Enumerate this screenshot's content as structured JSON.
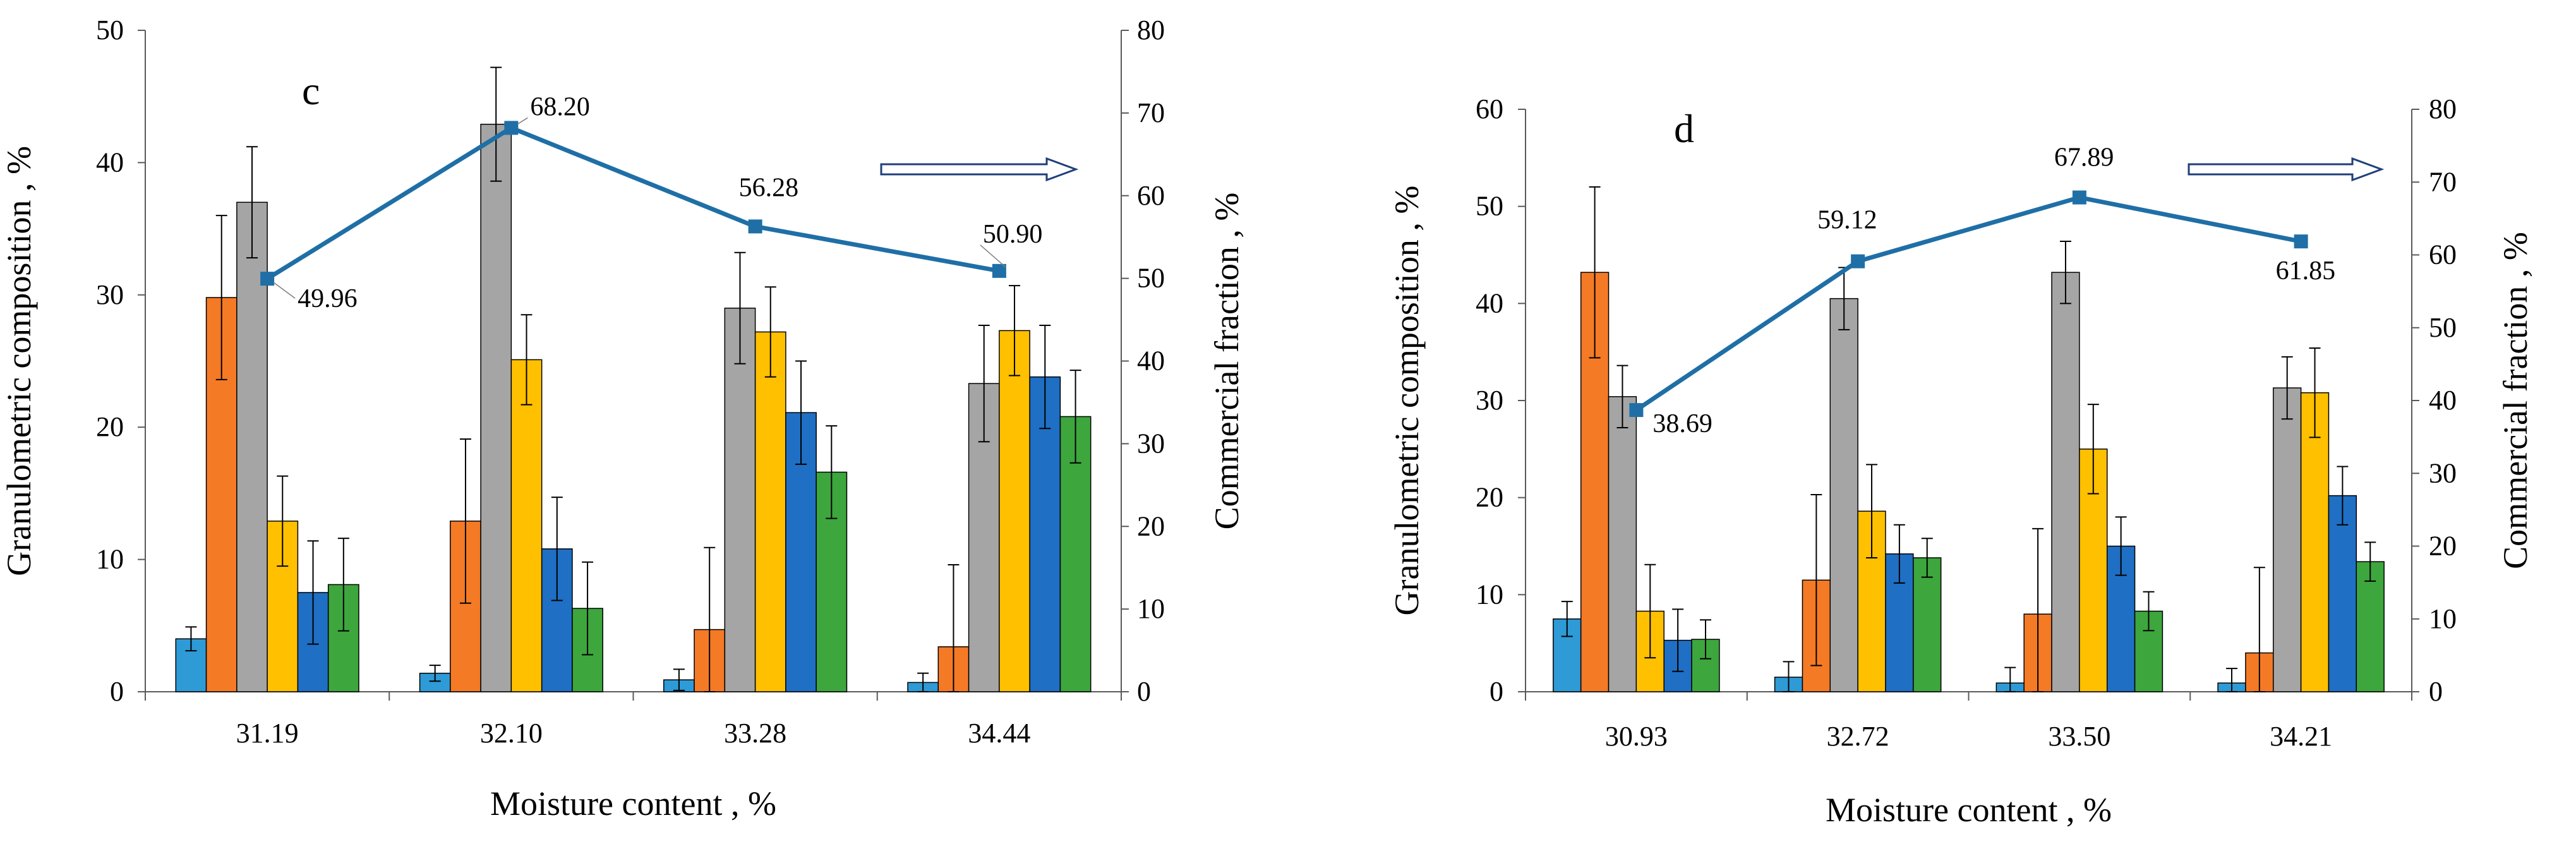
{
  "chart_data": [
    {
      "id": "c",
      "type": "bar",
      "panel_label": "c",
      "xlabel": "Moisture content , %",
      "ylabel": "Granulometric composition , %",
      "y2label": "Commercial fraction , %",
      "categories": [
        "31.19",
        "32.10",
        "33.28",
        "34.44"
      ],
      "ylim": [
        0,
        50
      ],
      "yticks": [
        "0",
        "10",
        "20",
        "30",
        "40",
        "50"
      ],
      "y2lim": [
        0,
        80
      ],
      "y2ticks": [
        "0",
        "10",
        "20",
        "30",
        "40",
        "50",
        "60",
        "70",
        "80"
      ],
      "bar_colors": [
        "#2e9ad6",
        "#f47a26",
        "#a5a5a5",
        "#ffc000",
        "#1f6fc4",
        "#3da63d"
      ],
      "series": [
        {
          "values": [
            4.0,
            1.4,
            0.9,
            0.7
          ],
          "errors": [
            0.9,
            0.6,
            0.8,
            0.7
          ]
        },
        {
          "values": [
            29.8,
            12.9,
            4.7,
            3.4
          ],
          "errors": [
            6.2,
            6.2,
            6.2,
            6.2
          ]
        },
        {
          "values": [
            37.0,
            42.9,
            29.0,
            23.3
          ],
          "errors": [
            4.2,
            4.3,
            4.2,
            4.4
          ]
        },
        {
          "values": [
            12.9,
            25.1,
            27.2,
            27.3
          ],
          "errors": [
            3.4,
            3.4,
            3.4,
            3.4
          ]
        },
        {
          "values": [
            7.5,
            10.8,
            21.1,
            23.8
          ],
          "errors": [
            3.9,
            3.9,
            3.9,
            3.9
          ]
        },
        {
          "values": [
            8.1,
            6.3,
            16.6,
            20.8
          ],
          "errors": [
            3.5,
            3.5,
            3.5,
            3.5
          ]
        }
      ],
      "line": {
        "color": "#1f6fa6",
        "values": [
          49.96,
          68.2,
          56.28,
          50.9
        ],
        "labels": [
          "49.96",
          "68.20",
          "56.28",
          "50.90"
        ]
      }
    },
    {
      "id": "d",
      "type": "bar",
      "panel_label": "d",
      "xlabel": "Moisture content , %",
      "ylabel": "Granulometric composition , %",
      "y2label": "Commercial fraction , %",
      "categories": [
        "30.93",
        "32.72",
        "33.50",
        "34.21"
      ],
      "ylim": [
        0,
        60
      ],
      "yticks": [
        "0",
        "10",
        "20",
        "30",
        "40",
        "50",
        "60"
      ],
      "y2lim": [
        0,
        80
      ],
      "y2ticks": [
        "0",
        "10",
        "20",
        "30",
        "40",
        "50",
        "60",
        "70",
        "80"
      ],
      "bar_colors": [
        "#2e9ad6",
        "#f47a26",
        "#a5a5a5",
        "#ffc000",
        "#1f6fc4",
        "#3da63d"
      ],
      "series": [
        {
          "values": [
            7.5,
            1.5,
            0.9,
            0.9
          ],
          "errors": [
            1.8,
            1.6,
            1.6,
            1.5
          ]
        },
        {
          "values": [
            43.2,
            11.5,
            8.0,
            4.0
          ],
          "errors": [
            8.8,
            8.8,
            8.8,
            8.8
          ]
        },
        {
          "values": [
            30.4,
            40.5,
            43.2,
            31.3
          ],
          "errors": [
            3.2,
            3.2,
            3.2,
            3.2
          ]
        },
        {
          "values": [
            8.3,
            18.6,
            25.0,
            30.8
          ],
          "errors": [
            4.8,
            4.8,
            4.6,
            4.6
          ]
        },
        {
          "values": [
            5.3,
            14.2,
            15.0,
            20.2
          ],
          "errors": [
            3.2,
            3.0,
            3.0,
            3.0
          ]
        },
        {
          "values": [
            5.4,
            13.8,
            8.3,
            13.4
          ],
          "errors": [
            2.0,
            2.0,
            2.0,
            2.0
          ]
        }
      ],
      "line": {
        "color": "#1f6fa6",
        "values": [
          38.69,
          59.12,
          67.89,
          61.85
        ],
        "labels": [
          "38.69",
          "59.12",
          "67.89",
          "61.85"
        ]
      }
    }
  ]
}
